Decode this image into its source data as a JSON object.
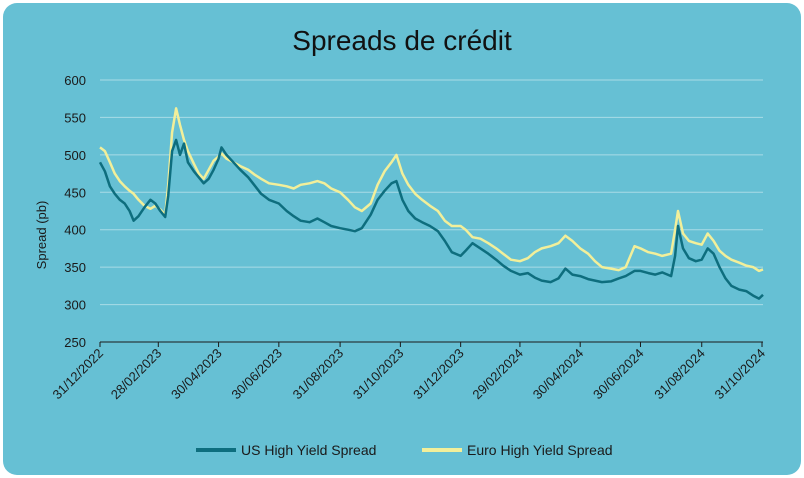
{
  "colors": {
    "background": "#66c0d4",
    "gridline": "#a9dbe6",
    "us_series": "#0e6e7e",
    "euro_series": "#f2ef9a"
  },
  "chart_data": {
    "type": "line",
    "title": "Spreads de crédit",
    "xlabel": "",
    "ylabel": "Spread (pb)",
    "ylim": [
      250,
      600
    ],
    "yticks": [
      250,
      300,
      350,
      400,
      450,
      500,
      550,
      600
    ],
    "xlim": [
      "2022-12-31",
      "2024-11-01"
    ],
    "xticks": [
      "31/12/2022",
      "28/02/2023",
      "30/04/2023",
      "30/06/2023",
      "31/08/2023",
      "31/10/2023",
      "31/12/2023",
      "29/02/2024",
      "30/04/2024",
      "30/06/2024",
      "31/08/2024",
      "31/10/2024"
    ],
    "grid": true,
    "legend": "bottom",
    "series": [
      {
        "name": "US High Yield Spread",
        "color": "#0e6e7e",
        "points": [
          [
            "2022-12-31",
            490
          ],
          [
            "2023-01-05",
            478
          ],
          [
            "2023-01-10",
            458
          ],
          [
            "2023-01-15",
            448
          ],
          [
            "2023-01-20",
            440
          ],
          [
            "2023-01-25",
            435
          ],
          [
            "2023-01-30",
            425
          ],
          [
            "2023-02-03",
            412
          ],
          [
            "2023-02-08",
            418
          ],
          [
            "2023-02-14",
            430
          ],
          [
            "2023-02-20",
            440
          ],
          [
            "2023-02-25",
            435
          ],
          [
            "2023-03-02",
            425
          ],
          [
            "2023-03-07",
            417
          ],
          [
            "2023-03-10",
            445
          ],
          [
            "2023-03-14",
            505
          ],
          [
            "2023-03-18",
            520
          ],
          [
            "2023-03-22",
            500
          ],
          [
            "2023-03-26",
            515
          ],
          [
            "2023-03-30",
            490
          ],
          [
            "2023-04-05",
            478
          ],
          [
            "2023-04-10",
            470
          ],
          [
            "2023-04-15",
            462
          ],
          [
            "2023-04-20",
            468
          ],
          [
            "2023-04-25",
            480
          ],
          [
            "2023-04-30",
            495
          ],
          [
            "2023-05-03",
            510
          ],
          [
            "2023-05-08",
            500
          ],
          [
            "2023-05-15",
            490
          ],
          [
            "2023-05-22",
            480
          ],
          [
            "2023-05-30",
            470
          ],
          [
            "2023-06-05",
            460
          ],
          [
            "2023-06-12",
            448
          ],
          [
            "2023-06-20",
            440
          ],
          [
            "2023-06-30",
            435
          ],
          [
            "2023-07-08",
            425
          ],
          [
            "2023-07-15",
            418
          ],
          [
            "2023-07-22",
            412
          ],
          [
            "2023-07-31",
            410
          ],
          [
            "2023-08-08",
            415
          ],
          [
            "2023-08-15",
            410
          ],
          [
            "2023-08-22",
            405
          ],
          [
            "2023-08-31",
            402
          ],
          [
            "2023-09-08",
            400
          ],
          [
            "2023-09-15",
            398
          ],
          [
            "2023-09-22",
            402
          ],
          [
            "2023-10-01",
            420
          ],
          [
            "2023-10-08",
            440
          ],
          [
            "2023-10-15",
            452
          ],
          [
            "2023-10-22",
            462
          ],
          [
            "2023-10-27",
            465
          ],
          [
            "2023-11-02",
            440
          ],
          [
            "2023-11-08",
            425
          ],
          [
            "2023-11-15",
            415
          ],
          [
            "2023-11-22",
            410
          ],
          [
            "2023-11-30",
            405
          ],
          [
            "2023-12-08",
            398
          ],
          [
            "2023-12-15",
            385
          ],
          [
            "2023-12-22",
            370
          ],
          [
            "2023-12-31",
            365
          ],
          [
            "2024-01-05",
            372
          ],
          [
            "2024-01-12",
            382
          ],
          [
            "2024-01-20",
            375
          ],
          [
            "2024-01-28",
            368
          ],
          [
            "2024-02-05",
            360
          ],
          [
            "2024-02-12",
            352
          ],
          [
            "2024-02-20",
            345
          ],
          [
            "2024-02-29",
            340
          ],
          [
            "2024-03-08",
            342
          ],
          [
            "2024-03-15",
            336
          ],
          [
            "2024-03-22",
            332
          ],
          [
            "2024-03-31",
            330
          ],
          [
            "2024-04-08",
            335
          ],
          [
            "2024-04-15",
            348
          ],
          [
            "2024-04-22",
            340
          ],
          [
            "2024-04-30",
            338
          ],
          [
            "2024-05-08",
            334
          ],
          [
            "2024-05-15",
            332
          ],
          [
            "2024-05-22",
            330
          ],
          [
            "2024-05-31",
            331
          ],
          [
            "2024-06-08",
            335
          ],
          [
            "2024-06-15",
            338
          ],
          [
            "2024-06-24",
            345
          ],
          [
            "2024-06-30",
            345
          ],
          [
            "2024-07-08",
            342
          ],
          [
            "2024-07-15",
            340
          ],
          [
            "2024-07-22",
            343
          ],
          [
            "2024-07-31",
            338
          ],
          [
            "2024-08-04",
            365
          ],
          [
            "2024-08-07",
            405
          ],
          [
            "2024-08-12",
            375
          ],
          [
            "2024-08-18",
            362
          ],
          [
            "2024-08-25",
            358
          ],
          [
            "2024-08-31",
            360
          ],
          [
            "2024-09-06",
            375
          ],
          [
            "2024-09-12",
            368
          ],
          [
            "2024-09-18",
            350
          ],
          [
            "2024-09-24",
            335
          ],
          [
            "2024-09-30",
            325
          ],
          [
            "2024-10-08",
            320
          ],
          [
            "2024-10-15",
            318
          ],
          [
            "2024-10-22",
            312
          ],
          [
            "2024-10-28",
            308
          ],
          [
            "2024-11-01",
            313
          ]
        ]
      },
      {
        "name": "Euro High Yield Spread",
        "color": "#f2ef9a",
        "points": [
          [
            "2022-12-31",
            510
          ],
          [
            "2023-01-05",
            505
          ],
          [
            "2023-01-10",
            490
          ],
          [
            "2023-01-15",
            475
          ],
          [
            "2023-01-20",
            465
          ],
          [
            "2023-01-25",
            458
          ],
          [
            "2023-01-30",
            452
          ],
          [
            "2023-02-03",
            448
          ],
          [
            "2023-02-08",
            440
          ],
          [
            "2023-02-14",
            432
          ],
          [
            "2023-02-20",
            428
          ],
          [
            "2023-02-25",
            432
          ],
          [
            "2023-03-02",
            427
          ],
          [
            "2023-03-07",
            420
          ],
          [
            "2023-03-10",
            460
          ],
          [
            "2023-03-14",
            530
          ],
          [
            "2023-03-18",
            562
          ],
          [
            "2023-03-22",
            540
          ],
          [
            "2023-03-26",
            520
          ],
          [
            "2023-03-30",
            505
          ],
          [
            "2023-04-05",
            488
          ],
          [
            "2023-04-10",
            475
          ],
          [
            "2023-04-15",
            468
          ],
          [
            "2023-04-20",
            480
          ],
          [
            "2023-04-25",
            492
          ],
          [
            "2023-04-30",
            498
          ],
          [
            "2023-05-03",
            502
          ],
          [
            "2023-05-08",
            495
          ],
          [
            "2023-05-15",
            490
          ],
          [
            "2023-05-22",
            485
          ],
          [
            "2023-05-30",
            480
          ],
          [
            "2023-06-05",
            474
          ],
          [
            "2023-06-12",
            468
          ],
          [
            "2023-06-20",
            462
          ],
          [
            "2023-06-30",
            460
          ],
          [
            "2023-07-08",
            458
          ],
          [
            "2023-07-15",
            455
          ],
          [
            "2023-07-22",
            460
          ],
          [
            "2023-07-31",
            462
          ],
          [
            "2023-08-08",
            465
          ],
          [
            "2023-08-15",
            462
          ],
          [
            "2023-08-22",
            455
          ],
          [
            "2023-08-31",
            450
          ],
          [
            "2023-09-08",
            440
          ],
          [
            "2023-09-15",
            430
          ],
          [
            "2023-09-22",
            425
          ],
          [
            "2023-10-01",
            435
          ],
          [
            "2023-10-08",
            460
          ],
          [
            "2023-10-15",
            478
          ],
          [
            "2023-10-22",
            490
          ],
          [
            "2023-10-27",
            500
          ],
          [
            "2023-11-02",
            475
          ],
          [
            "2023-11-08",
            460
          ],
          [
            "2023-11-15",
            448
          ],
          [
            "2023-11-22",
            440
          ],
          [
            "2023-11-30",
            432
          ],
          [
            "2023-12-08",
            425
          ],
          [
            "2023-12-15",
            412
          ],
          [
            "2023-12-22",
            405
          ],
          [
            "2023-12-31",
            405
          ],
          [
            "2024-01-05",
            400
          ],
          [
            "2024-01-12",
            390
          ],
          [
            "2024-01-20",
            388
          ],
          [
            "2024-01-28",
            382
          ],
          [
            "2024-02-05",
            375
          ],
          [
            "2024-02-12",
            368
          ],
          [
            "2024-02-20",
            360
          ],
          [
            "2024-02-29",
            358
          ],
          [
            "2024-03-08",
            362
          ],
          [
            "2024-03-15",
            370
          ],
          [
            "2024-03-22",
            375
          ],
          [
            "2024-03-31",
            378
          ],
          [
            "2024-04-08",
            382
          ],
          [
            "2024-04-15",
            392
          ],
          [
            "2024-04-22",
            385
          ],
          [
            "2024-04-30",
            375
          ],
          [
            "2024-05-08",
            368
          ],
          [
            "2024-05-15",
            358
          ],
          [
            "2024-05-22",
            350
          ],
          [
            "2024-05-31",
            348
          ],
          [
            "2024-06-08",
            346
          ],
          [
            "2024-06-15",
            350
          ],
          [
            "2024-06-24",
            378
          ],
          [
            "2024-06-30",
            375
          ],
          [
            "2024-07-08",
            370
          ],
          [
            "2024-07-15",
            368
          ],
          [
            "2024-07-22",
            365
          ],
          [
            "2024-07-31",
            368
          ],
          [
            "2024-08-04",
            400
          ],
          [
            "2024-08-07",
            425
          ],
          [
            "2024-08-12",
            395
          ],
          [
            "2024-08-18",
            385
          ],
          [
            "2024-08-25",
            382
          ],
          [
            "2024-08-31",
            380
          ],
          [
            "2024-09-06",
            395
          ],
          [
            "2024-09-12",
            385
          ],
          [
            "2024-09-18",
            372
          ],
          [
            "2024-09-24",
            365
          ],
          [
            "2024-09-30",
            360
          ],
          [
            "2024-10-08",
            356
          ],
          [
            "2024-10-15",
            352
          ],
          [
            "2024-10-22",
            350
          ],
          [
            "2024-10-28",
            345
          ],
          [
            "2024-11-01",
            347
          ]
        ]
      }
    ]
  }
}
